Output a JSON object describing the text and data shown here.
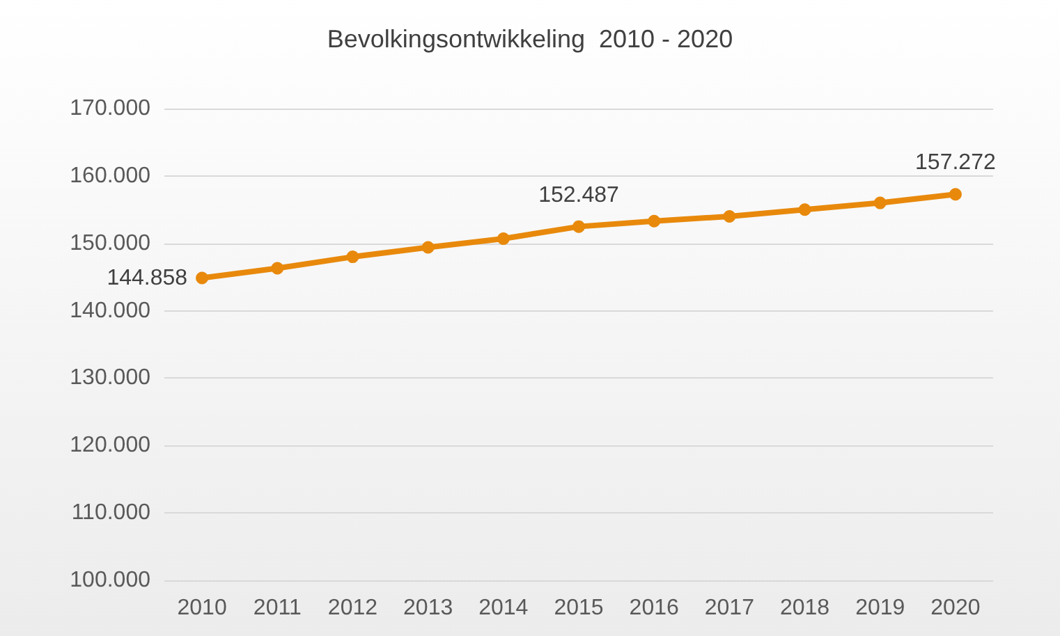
{
  "chart_data": {
    "type": "line",
    "title": "Bevolkingsontwikkeling  2010 - 2020",
    "categories": [
      "2010",
      "2011",
      "2012",
      "2013",
      "2014",
      "2015",
      "2016",
      "2017",
      "2018",
      "2019",
      "2020"
    ],
    "series": [
      {
        "color": "#e8890c",
        "values": [
          144858,
          146300,
          148000,
          149400,
          150700,
          152487,
          153300,
          154000,
          155000,
          156000,
          157272
        ],
        "value_labels": [
          "144.858",
          null,
          null,
          null,
          null,
          "152.487",
          null,
          null,
          null,
          null,
          "157.272"
        ]
      }
    ],
    "ylim": [
      100000,
      170000
    ],
    "yticks": [
      {
        "value": 100000,
        "label": "100.000"
      },
      {
        "value": 110000,
        "label": "110.000"
      },
      {
        "value": 120000,
        "label": "120.000"
      },
      {
        "value": 130000,
        "label": "130.000"
      },
      {
        "value": 140000,
        "label": "140.000"
      },
      {
        "value": 150000,
        "label": "150.000"
      },
      {
        "value": 160000,
        "label": "160.000"
      },
      {
        "value": 170000,
        "label": "170.000"
      }
    ],
    "grid": "y",
    "marker": "circle",
    "line_style": "solid"
  }
}
